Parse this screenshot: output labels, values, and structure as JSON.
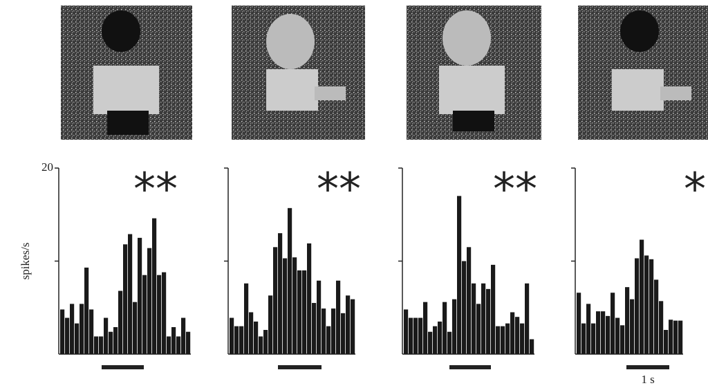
{
  "chart_data": [
    {
      "type": "bar",
      "annotation": "**",
      "y_label": "spikes/s",
      "color": "#1a1a1a",
      "ylim": [
        0,
        20
      ],
      "yticks": [
        {
          "value": 10,
          "label": null
        },
        20
      ],
      "values": [
        4.8,
        3.9,
        5.4,
        3.3,
        5.4,
        9.3,
        4.8,
        1.9,
        1.9,
        3.9,
        2.4,
        2.9,
        6.8,
        11.8,
        12.9,
        5.6,
        12.5,
        8.5,
        11.4,
        14.6,
        8.5,
        8.8,
        1.9,
        2.9,
        1.9,
        3.9,
        2.4
      ]
    },
    {
      "type": "bar",
      "annotation": "**",
      "color": "#1a1a1a",
      "ylim": [
        0,
        20
      ],
      "yticks": [
        {
          "value": 10,
          "label": null
        },
        {
          "value": 20,
          "label": null
        }
      ],
      "values": [
        3.9,
        3,
        3,
        7.6,
        4.5,
        3.5,
        1.9,
        2.6,
        6.3,
        11.5,
        13,
        10.3,
        15.7,
        10.4,
        9,
        9,
        11.9,
        5.5,
        7.9,
        4.9,
        3,
        4.9,
        7.9,
        4.4,
        6.3,
        5.9
      ]
    },
    {
      "type": "bar",
      "annotation": "**",
      "color": "#1a1a1a",
      "ylim": [
        0,
        20
      ],
      "yticks": [
        {
          "value": 10,
          "label": null
        },
        {
          "value": 20,
          "label": null
        }
      ],
      "values": [
        4.8,
        3.9,
        3.9,
        3.9,
        5.6,
        2.4,
        3,
        3.5,
        5.6,
        2.4,
        5.9,
        17,
        10,
        11.5,
        7.6,
        5.4,
        7.6,
        7,
        9.6,
        3,
        3,
        3.3,
        4.5,
        4,
        3.3,
        7.6,
        1.6
      ]
    },
    {
      "type": "bar",
      "annotation": "*",
      "scale_label": "1 s",
      "color": "#1a1a1a",
      "ylim": [
        0,
        20
      ],
      "yticks": [
        {
          "value": 10,
          "label": null
        },
        {
          "value": 20,
          "label": null
        }
      ],
      "values": [
        6.6,
        3.3,
        5.4,
        3.3,
        4.6,
        4.6,
        4.1,
        6.6,
        3.9,
        3.1,
        7.2,
        5.9,
        10.3,
        12.3,
        10.6,
        10.2,
        8,
        5.7,
        2.6,
        3.7,
        3.6,
        3.6
      ]
    }
  ]
}
